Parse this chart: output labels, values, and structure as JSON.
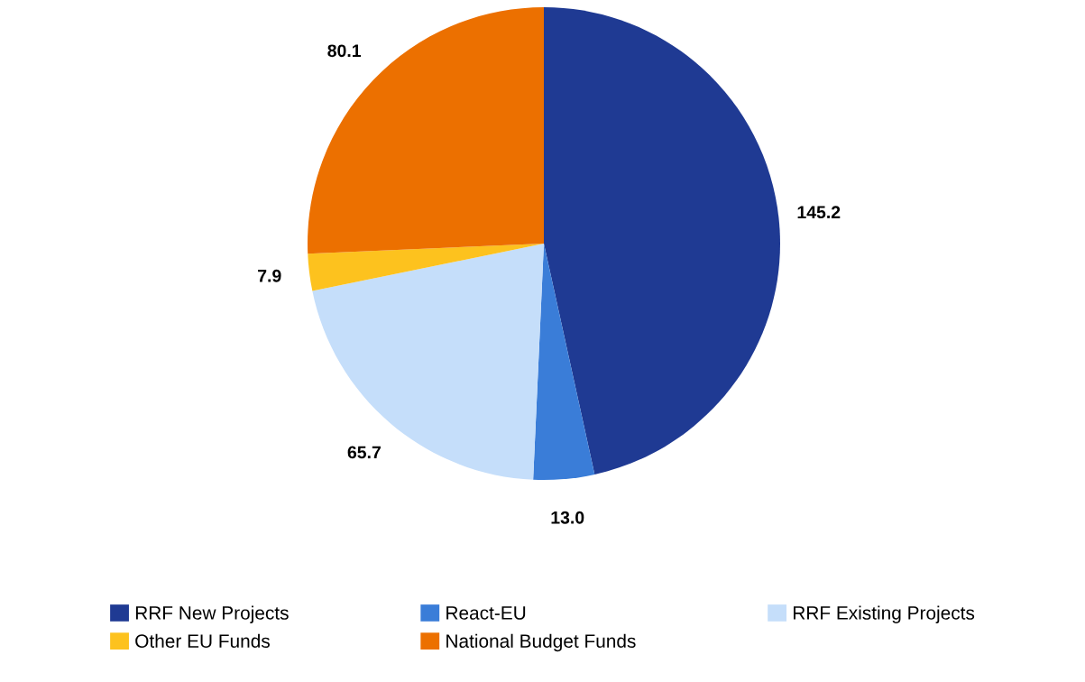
{
  "chart_data": {
    "type": "pie",
    "categories": [
      "RRF New Projects",
      "React-EU",
      "RRF Existing Projects",
      "Other EU Funds",
      "National Budget Funds"
    ],
    "values": [
      145.2,
      13.0,
      65.7,
      7.9,
      80.1
    ],
    "colors": [
      "#1f3a93",
      "#3a7dd8",
      "#c5defa",
      "#fdc21e",
      "#ec7000"
    ],
    "value_labels": [
      "145.2",
      "13.0",
      "65.7",
      "7.9",
      "80.1"
    ],
    "legend": "bottom"
  }
}
